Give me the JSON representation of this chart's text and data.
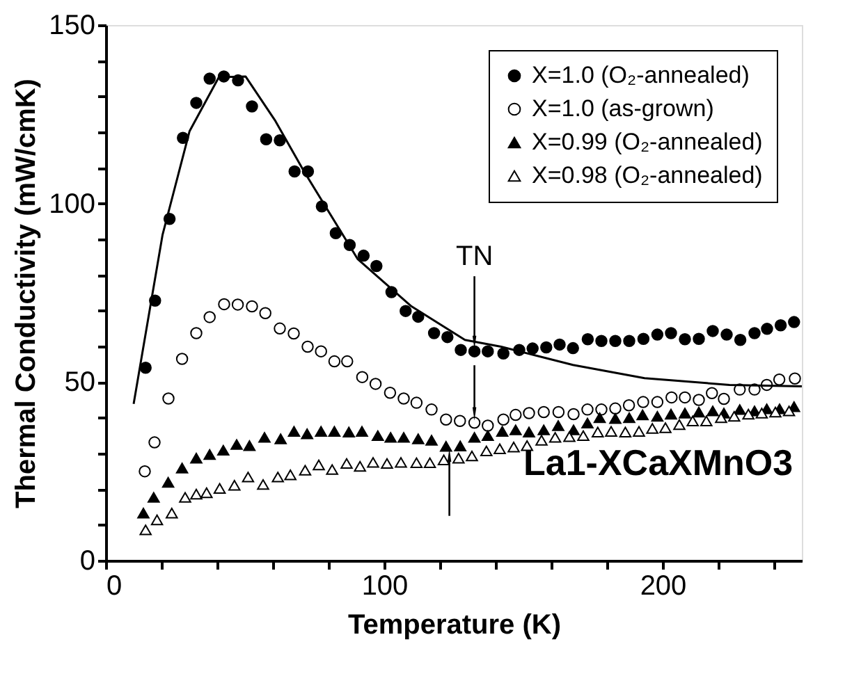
{
  "chart_data": {
    "type": "scatter",
    "xlabel": "Temperature     (K)",
    "ylabel": "Thermal    Conductivity    (mW/cmK)",
    "xlim": [
      0,
      250
    ],
    "ylim": [
      0,
      150
    ],
    "xticks": [
      0,
      {
        "value": 20,
        "label": null
      },
      {
        "value": 40,
        "label": null
      },
      {
        "value": 60,
        "label": null
      },
      {
        "value": 80,
        "label": null
      },
      100,
      {
        "value": 120,
        "label": null
      },
      {
        "value": 140,
        "label": null
      },
      {
        "value": 160,
        "label": null
      },
      {
        "value": 180,
        "label": null
      },
      200,
      {
        "value": 220,
        "label": null
      },
      {
        "value": 240,
        "label": null
      }
    ],
    "yticks": [
      0,
      {
        "value": 10,
        "label": null
      },
      {
        "value": 20,
        "label": null
      },
      {
        "value": 30,
        "label": null
      },
      {
        "value": 40,
        "label": null
      },
      50,
      {
        "value": 60,
        "label": null
      },
      {
        "value": 70,
        "label": null
      },
      {
        "value": 80,
        "label": null
      },
      {
        "value": 90,
        "label": null
      },
      100,
      {
        "value": 110,
        "label": null
      },
      {
        "value": 120,
        "label": null
      },
      {
        "value": 130,
        "label": null
      },
      {
        "value": 140,
        "label": null
      },
      150
    ],
    "legend": "top right",
    "grid": false,
    "annotations": [
      {
        "text": "TN",
        "x": 132.4,
        "y": 58.6
      },
      "La1-XCaXMnO3"
    ],
    "series": [
      {
        "name": "X=1.0 (O₂-annealed)",
        "color": "#000000",
        "marker": "circle",
        "x": [
          14.3,
          17.7,
          22.9,
          27.7,
          32.5,
          37.3,
          42.4,
          47.5,
          52.5,
          57.6,
          62.5,
          67.8,
          72.6,
          77.6,
          82.6,
          87.6,
          92.6,
          97.2,
          102.6,
          107.7,
          112.2,
          117.9,
          122.7,
          127.5,
          132.4,
          137.2,
          142.8,
          148.5,
          153.3,
          158.2,
          163,
          167.8,
          173.1,
          178,
          183,
          188,
          193.1,
          198.1,
          203,
          208,
          213,
          218,
          223,
          227.9,
          233,
          237.5,
          242.4,
          247.2
        ],
        "values": [
          54,
          72.8,
          95.7,
          118.4,
          128.2,
          135,
          135.6,
          134.5,
          127.2,
          118,
          117.7,
          109,
          109,
          99.2,
          91.7,
          88.4,
          85.4,
          82.5,
          75.2,
          69.9,
          68.3,
          63.7,
          62.6,
          59,
          58.6,
          58.6,
          58,
          59,
          59.4,
          59.7,
          60.5,
          59.5,
          62,
          61.5,
          61.5,
          61.5,
          62.1,
          63.3,
          63.7,
          62,
          62.1,
          64.3,
          63.3,
          61.8,
          63.7,
          64.9,
          65.9,
          66.8
        ]
      },
      {
        "name": "X=1.0 (as-grown)",
        "color": "#000000",
        "marker": "circle-open",
        "x": [
          14,
          17.5,
          22.5,
          27.4,
          32.5,
          37.3,
          42.5,
          47.4,
          52.5,
          57.3,
          62.5,
          67.5,
          72.5,
          77.3,
          82.1,
          86.7,
          92.1,
          96.9,
          102.1,
          107,
          111.6,
          117,
          122.2,
          127.2,
          132.4,
          137.2,
          142.8,
          147.2,
          152,
          157.3,
          162.6,
          168,
          173,
          178,
          183,
          187.9,
          193,
          198.1,
          203.2,
          208,
          213,
          217.7,
          222,
          227.7,
          233,
          237.4,
          241.9,
          247.5
        ],
        "values": [
          25,
          33.1,
          45.4,
          56.5,
          63.7,
          68.2,
          71.8,
          71.7,
          71.2,
          69.3,
          65,
          63.6,
          59.9,
          58.6,
          55.8,
          55.8,
          51.4,
          49.5,
          47,
          45.4,
          44.2,
          42.3,
          39.5,
          39.1,
          38.6,
          37.8,
          39.5,
          40.8,
          41.3,
          41.6,
          41.6,
          41,
          42.3,
          42.3,
          42.6,
          43.5,
          44.4,
          44.4,
          45.7,
          45.7,
          45,
          46.9,
          45.3,
          47.9,
          47.9,
          49.2,
          50.7,
          51
        ]
      },
      {
        "name": "X=0.99 (O₂-annealed)",
        "color": "#000000",
        "marker": "triangle",
        "x": [
          13.5,
          17.2,
          22.4,
          27.4,
          32.5,
          37.3,
          42.2,
          47,
          51.6,
          57,
          62.8,
          67.6,
          72.3,
          77.3,
          82.1,
          87.3,
          92,
          97.7,
          102.3,
          107,
          112.2,
          117,
          122.2,
          127.3,
          132.4,
          137.2,
          142.4,
          147.2,
          152,
          157.3,
          162.5,
          168,
          173,
          177.4,
          183,
          188,
          192.8,
          198.1,
          203,
          208,
          213,
          218,
          222,
          227.7,
          233,
          237.4,
          242,
          247.2
        ],
        "values": [
          13.3,
          17.7,
          21.9,
          25.9,
          28.7,
          29.7,
          30.9,
          32.5,
          32.2,
          34.5,
          34.1,
          36.2,
          35.5,
          36.2,
          36.2,
          36,
          36.2,
          35,
          34.5,
          34.5,
          34.1,
          33.7,
          32,
          32.1,
          34.5,
          35,
          36.2,
          36.6,
          36,
          36.6,
          37.8,
          36.6,
          38.5,
          40,
          39.8,
          40,
          40.8,
          40.4,
          41,
          41.3,
          41.6,
          41.9,
          41.3,
          42.3,
          41.9,
          42.5,
          42.5,
          43.1
        ]
      },
      {
        "name": "X=0.98 (O₂-annealed)",
        "color": "#000000",
        "marker": "triangle-open",
        "x": [
          14.3,
          18.4,
          23.7,
          28.5,
          32.5,
          36.2,
          40.9,
          46.2,
          51.1,
          56.5,
          61.8,
          66.3,
          71.6,
          76.5,
          81.3,
          86.5,
          91.3,
          96,
          101,
          106,
          111.6,
          116.4,
          121.4,
          126.7,
          131.5,
          136.7,
          141.5,
          146.5,
          151.3,
          156.5,
          161.4,
          166.5,
          171.5,
          176.7,
          181.5,
          186.6,
          191.5,
          196.3,
          201,
          206,
          210.8,
          215.7,
          221,
          225.7,
          230.8,
          235.6,
          240.5,
          245.4
        ],
        "values": [
          8.6,
          11.4,
          13.3,
          17.7,
          18.6,
          19,
          20.2,
          21.1,
          23.4,
          21.3,
          23.4,
          24,
          25.3,
          26.8,
          25.5,
          27.2,
          26.4,
          27.5,
          27.2,
          27.5,
          27.4,
          27.4,
          28.2,
          28.7,
          29.3,
          30.7,
          31.3,
          31.8,
          32.2,
          33.7,
          34.5,
          34.7,
          35,
          36,
          36.2,
          36,
          36.2,
          37,
          37.2,
          38.1,
          39.1,
          39.1,
          40,
          40.4,
          41,
          41.3,
          41.6,
          41.9
        ]
      },
      {
        "type": "line",
        "color": "#000000",
        "line_style": "solid",
        "x": [
          10,
          20.4,
          30.1,
          40.6,
          50.2,
          60.7,
          71.2,
          90.5,
          109.8,
          129,
          142,
          167.8,
          193.5,
          224,
          250
        ],
        "values": [
          43.9,
          91.3,
          120.3,
          135.4,
          135.6,
          123.4,
          109,
          84.4,
          71.2,
          61.8,
          59.9,
          54.8,
          51.1,
          49.2,
          48.8
        ]
      }
    ]
  }
}
